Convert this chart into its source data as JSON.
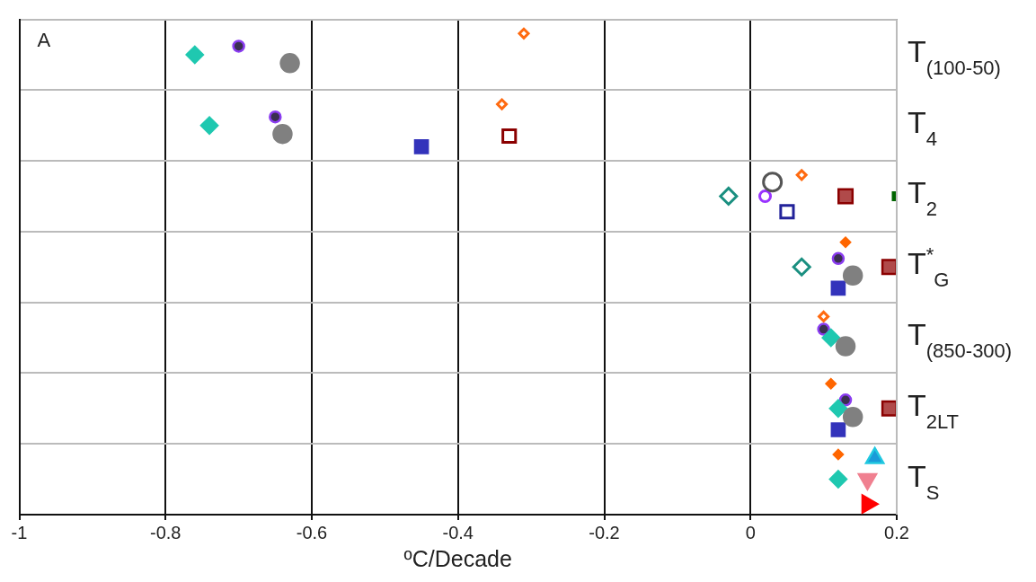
{
  "chart_data": {
    "type": "scatter",
    "orientation": "horizontal",
    "xlabel": "ºC/Decade",
    "annotations": [
      "A"
    ],
    "categories": [
      "T$_{(100-50)}$",
      "T$_{4}$",
      "T$_{2}$",
      "T$^{*}$$_{G}$",
      "T$_{(850-300)}$",
      "T$_{2LT}$",
      "T$_{S}$"
    ],
    "xlim": [
      -1,
      0.2
    ],
    "xticks": [
      -1,
      -0.8,
      -0.6,
      -0.4,
      -0.2,
      0,
      0.2
    ],
    "grid": true,
    "legend": false,
    "series": [
      {
        "color": "#1fc8b0",
        "marker": "diamond",
        "values": [
          -0.76,
          -0.74,
          null,
          null,
          0.11,
          0.12,
          0.12
        ]
      },
      {
        "color": "#8a3cf0",
        "marker": "circle",
        "values": [
          -0.7,
          -0.65,
          null,
          0.12,
          0.1,
          0.13,
          null
        ]
      },
      {
        "color": "#808080",
        "marker": "circle",
        "values": [
          -0.63,
          -0.64,
          null,
          0.14,
          0.13,
          0.14,
          null
        ]
      },
      {
        "color": "#ff6a10",
        "marker": "diamond",
        "values": [
          -0.31,
          -0.34,
          0.07,
          null,
          0.1,
          null,
          null
        ]
      },
      {
        "color": "#3333bb",
        "marker": "square",
        "values": [
          null,
          -0.45,
          null,
          0.12,
          null,
          0.12,
          null
        ]
      },
      {
        "color": "#8b0000",
        "marker": "square",
        "values": [
          null,
          -0.33,
          null,
          null,
          null,
          null,
          null
        ]
      },
      {
        "color": "#555555",
        "marker": "circle",
        "values": [
          null,
          null,
          0.03,
          null,
          null,
          null,
          null
        ]
      },
      {
        "color": "#9933ff",
        "marker": "circle",
        "values": [
          null,
          null,
          0.02,
          null,
          null,
          null,
          null
        ]
      },
      {
        "color": "#1a8f80",
        "marker": "diamond",
        "values": [
          null,
          null,
          -0.03,
          0.07,
          null,
          null,
          null
        ]
      },
      {
        "color": "#b04a4a",
        "marker": "square",
        "values": [
          null,
          null,
          0.13,
          0.19,
          null,
          0.19,
          null
        ]
      },
      {
        "color": "#006400",
        "marker": "square",
        "values": [
          null,
          null,
          0.2,
          null,
          null,
          null,
          null
        ]
      },
      {
        "color": "#22229a",
        "marker": "square",
        "values": [
          null,
          null,
          0.05,
          null,
          null,
          null,
          null
        ]
      },
      {
        "color": "#ff6600",
        "marker": "diamond",
        "values": [
          null,
          null,
          null,
          0.13,
          null,
          0.11,
          0.12
        ]
      },
      {
        "color": "#20c8e0",
        "marker": "triangle",
        "values": [
          null,
          null,
          null,
          null,
          null,
          null,
          0.17
        ]
      },
      {
        "color": "#f08090",
        "marker": "triangle-down",
        "values": [
          null,
          null,
          null,
          null,
          null,
          null,
          0.16
        ]
      },
      {
        "color": "#ff0000",
        "marker": "triangle-right",
        "values": [
          null,
          null,
          null,
          null,
          null,
          null,
          0.16
        ]
      }
    ]
  }
}
